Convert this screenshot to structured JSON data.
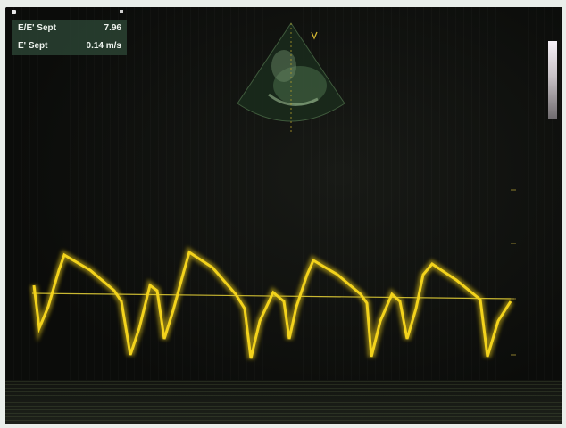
{
  "measurements": [
    {
      "label": "E/E' Sept",
      "value": "7.96"
    },
    {
      "label": "E' Sept",
      "value": "0.14 m/s"
    }
  ],
  "colors": {
    "trace": "#e2c414",
    "baseline": "#c9b832",
    "panel": "#2c4436"
  }
}
